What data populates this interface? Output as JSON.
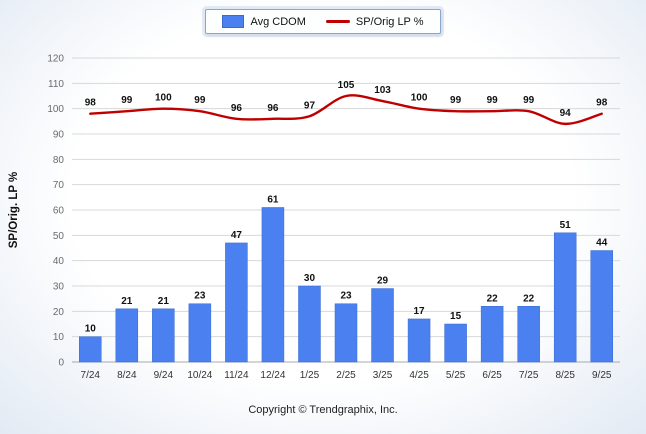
{
  "footer": {
    "text": "Copyright © Trendgraphix, Inc."
  },
  "chart_data": {
    "type": "bar+line",
    "title": "",
    "categories": [
      "7/24",
      "8/24",
      "9/24",
      "10/24",
      "11/24",
      "12/24",
      "1/25",
      "2/25",
      "3/25",
      "4/25",
      "5/25",
      "6/25",
      "7/25",
      "8/25",
      "9/25"
    ],
    "series": [
      {
        "name": "Avg CDOM",
        "type": "bar",
        "color": "#4a80f0",
        "border_color": "#3a6ad0",
        "values": [
          10,
          21,
          21,
          23,
          47,
          61,
          30,
          23,
          29,
          17,
          15,
          22,
          22,
          51,
          44
        ]
      },
      {
        "name": "SP/Orig LP %",
        "type": "line",
        "color": "#c00000",
        "values": [
          98,
          99,
          100,
          99,
          96,
          96,
          97,
          105,
          103,
          100,
          99,
          99,
          99,
          94,
          98
        ]
      }
    ],
    "xlabel": "",
    "ylabel": "SP/Orig. LP %",
    "ylim": [
      0,
      120
    ],
    "ytick_step": 10,
    "grid": true,
    "legend_position": "top-center",
    "label_color": "#111111",
    "grid_color": "#d8d8d8",
    "axis_color": "#a8a8a8",
    "ytick_color": "#6b6b6b",
    "xtick_color": "#333333"
  }
}
